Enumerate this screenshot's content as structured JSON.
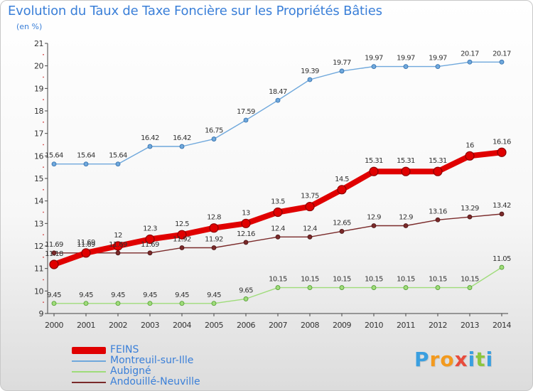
{
  "page": {
    "title": "Evolution du Taux de Taxe Foncière sur les Propriétés Bâties",
    "unit": "(en %)",
    "logo": "Proxiti",
    "logo_colors": [
      "#3a9fe0",
      "#f39a1e",
      "#f39a1e",
      "#e84c3d",
      "#3a9fe0",
      "#8cc63f",
      "#3a9fe0"
    ]
  },
  "chart_data": {
    "type": "line",
    "title": "Evolution du Taux de Taxe Foncière sur les Propriétés Bâties",
    "ylabel": "(en %)",
    "xlabel": "",
    "x": [
      "2000",
      "2001",
      "2002",
      "2003",
      "2004",
      "2005",
      "2006",
      "2007",
      "2008",
      "2009",
      "2010",
      "2011",
      "2012",
      "2013",
      "2014"
    ],
    "ylim": [
      9,
      21
    ],
    "yticks": [
      "9",
      "10",
      "11",
      "12",
      "13",
      "14",
      "15",
      "16",
      "17",
      "18",
      "19",
      "20",
      "21"
    ],
    "grid": false,
    "legend_position": "bottom-left",
    "series": [
      {
        "name": "FEINS",
        "color": "#e00000",
        "values": [
          11.18,
          11.69,
          12,
          12.3,
          12.5,
          12.8,
          13,
          13.5,
          13.75,
          14.5,
          15.31,
          15.31,
          15.31,
          16,
          16.16
        ],
        "labels": [
          "11.18",
          "11.69",
          "12",
          "12.3",
          "12.5",
          "12.8",
          "13",
          "13.5",
          "13.75",
          "14.5",
          "15.31",
          "15.31",
          "15.31",
          "16",
          "16.16"
        ]
      },
      {
        "name": "Montreuil-sur-Ille",
        "color": "#6fa8dc",
        "values": [
          15.64,
          15.64,
          15.64,
          16.42,
          16.42,
          16.75,
          17.59,
          18.47,
          19.39,
          19.77,
          19.97,
          19.97,
          19.97,
          20.17,
          20.17
        ],
        "labels": [
          "15.64",
          "15.64",
          "15.64",
          "16.42",
          "16.42",
          "16.75",
          "17.59",
          "18.47",
          "19.39",
          "19.77",
          "19.97",
          "19.97",
          "19.97",
          "20.17",
          "20.17"
        ]
      },
      {
        "name": "Aubigné",
        "color": "#9fdc7a",
        "values": [
          9.45,
          9.45,
          9.45,
          9.45,
          9.45,
          9.45,
          9.65,
          10.15,
          10.15,
          10.15,
          10.15,
          10.15,
          10.15,
          10.15,
          11.05
        ],
        "labels": [
          "9.45",
          "9.45",
          "9.45",
          "9.45",
          "9.45",
          "9.45",
          "9.65",
          "10.15",
          "10.15",
          "10.15",
          "10.15",
          "10.15",
          "10.15",
          "10.15",
          "11.05"
        ]
      },
      {
        "name": "Andouillé-Neuville",
        "color": "#7a2a2a",
        "values": [
          11.69,
          11.69,
          11.69,
          11.69,
          11.92,
          11.92,
          12.16,
          12.4,
          12.4,
          12.65,
          12.9,
          12.9,
          13.16,
          13.29,
          13.42
        ],
        "labels": [
          "11.69",
          "11.69",
          "11.69",
          "11.69",
          "11.92",
          "11.92",
          "12.16",
          "12.4",
          "12.4",
          "12.65",
          "12.9",
          "12.9",
          "13.16",
          "13.29",
          "13.42"
        ]
      }
    ]
  }
}
